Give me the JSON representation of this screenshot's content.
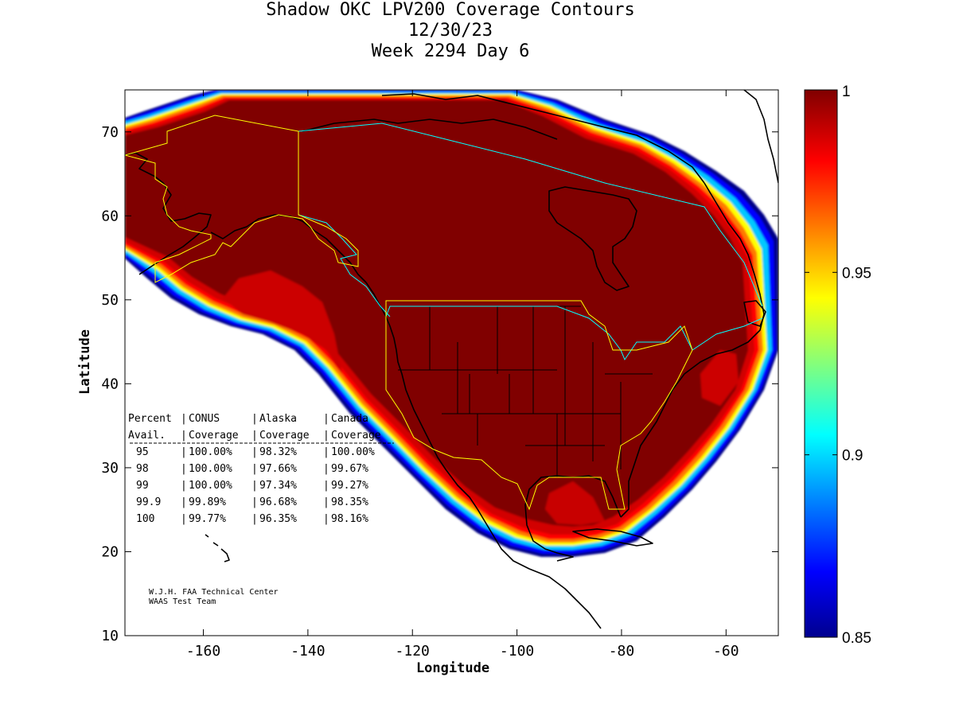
{
  "title": {
    "line1": "Shadow OKC LPV200 Coverage Contours",
    "line2": "12/30/23",
    "line3": "Week 2294 Day 6"
  },
  "axes": {
    "xlabel": "Longitude",
    "ylabel": "Latitude",
    "xlim": [
      -175,
      -50
    ],
    "ylim": [
      10,
      75
    ],
    "xticks": [
      -160,
      -140,
      -120,
      -100,
      -80,
      -60
    ],
    "yticks": [
      10,
      20,
      30,
      40,
      50,
      60,
      70
    ]
  },
  "colorbar": {
    "range": [
      0.85,
      1.0
    ],
    "ticks": [
      {
        "value": 1.0,
        "label": "1"
      },
      {
        "value": 0.95,
        "label": "0.95"
      },
      {
        "value": 0.9,
        "label": "0.9"
      },
      {
        "value": 0.85,
        "label": "0.85"
      }
    ]
  },
  "table": {
    "header1": [
      "Percent",
      "CONUS",
      "Alaska",
      "Canada"
    ],
    "header2": [
      "Avail.",
      "Coverage",
      "Coverage",
      "Coverage"
    ],
    "rows": [
      [
        "95",
        "100.00%",
        "98.32%",
        "100.00%"
      ],
      [
        "98",
        "100.00%",
        "97.66%",
        "99.67%"
      ],
      [
        "99",
        "100.00%",
        "97.34%",
        "99.27%"
      ],
      [
        "99.9",
        "99.89%",
        "96.68%",
        "98.35%"
      ],
      [
        "100",
        "99.77%",
        "96.35%",
        "98.16%"
      ]
    ]
  },
  "credit": {
    "line1": "W.J.H. FAA Technical Center",
    "line2": "WAAS Test Team"
  },
  "colors": {
    "core": "#800000",
    "outline_yellow": "#ffff00",
    "outline_cyan": "#00ffff"
  }
}
